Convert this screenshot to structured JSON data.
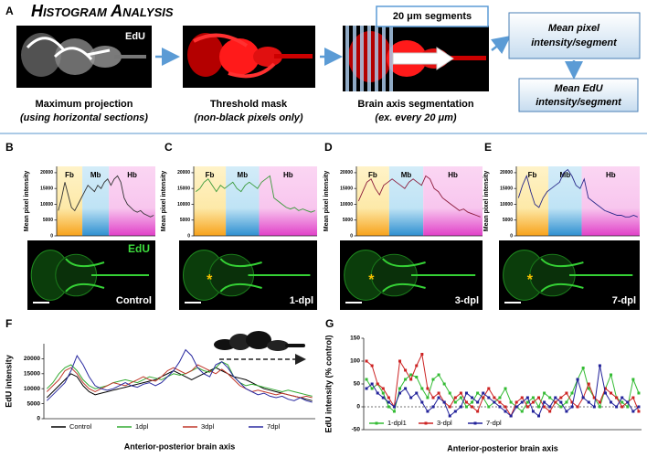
{
  "figure": {
    "panel_labels": [
      "A",
      "B",
      "C",
      "D",
      "E",
      "F",
      "G"
    ],
    "panel_a": {
      "title": "Histogram Analysis",
      "image_label": "EdU",
      "captions": [
        {
          "main": "Maximum projection",
          "sub": "(using horizontal sections)"
        },
        {
          "main": "Threshold mask",
          "sub": "(non-black pixels only)"
        },
        {
          "main": "Brain axis segmentation",
          "sub": "(ex. every 20 μm)"
        }
      ],
      "segments_box": "20 μm segments",
      "box1": [
        "Mean pixel",
        "intensity/segment"
      ],
      "box2": [
        "Mean EdU",
        "intensity/segment"
      ]
    }
  },
  "chart_data": [
    {
      "type": "mini",
      "y_label": "Mean pixel intensity",
      "regions": [
        "Fb",
        "Mb",
        "Hb"
      ],
      "image_label": "EdU",
      "condition": "Control",
      "series": [
        {
          "color": "#333333",
          "values": [
            8000,
            12000,
            17000,
            13000,
            9000,
            8000,
            10000,
            12000,
            14000,
            16000,
            15000,
            14000,
            16000,
            15000,
            17000,
            18000,
            16000,
            18000,
            19000,
            17000,
            12000,
            10000,
            9000,
            8000,
            7500,
            8000,
            7000,
            6500,
            6000,
            6500
          ]
        }
      ],
      "ylim": [
        0,
        22000
      ],
      "yticks": [
        0,
        5000,
        10000,
        15000,
        20000
      ]
    },
    {
      "type": "mini",
      "y_label": "Mean pixel intensity",
      "regions": [
        "Fb",
        "Mb",
        "Hb"
      ],
      "condition": "1-dpl",
      "marker": "*",
      "series": [
        {
          "color": "#3a9a3a",
          "values": [
            14000,
            15000,
            17000,
            18000,
            16000,
            14000,
            16000,
            15000,
            16000,
            17000,
            15000,
            14000,
            16000,
            17000,
            16000,
            15000,
            17000,
            18000,
            19000,
            12000,
            11000,
            10000,
            9000,
            8500,
            9000,
            8000,
            8500,
            8000,
            7500,
            8000
          ]
        }
      ],
      "ylim": [
        0,
        22000
      ],
      "yticks": [
        0,
        5000,
        10000,
        15000,
        20000
      ]
    },
    {
      "type": "mini",
      "y_label": "Mean pixel intensity",
      "regions": [
        "Fb",
        "Mb",
        "Hb"
      ],
      "condition": "3-dpl",
      "marker": "*",
      "series": [
        {
          "color": "#8b1a3a",
          "values": [
            11000,
            14000,
            17000,
            18000,
            15000,
            13000,
            16000,
            17000,
            18000,
            17000,
            16000,
            15000,
            17000,
            18000,
            17000,
            16000,
            19000,
            18000,
            15000,
            14000,
            12000,
            11000,
            10000,
            9000,
            8000,
            8500,
            7500,
            7000,
            6500,
            6000
          ]
        }
      ],
      "ylim": [
        0,
        22000
      ],
      "yticks": [
        0,
        5000,
        10000,
        15000,
        20000
      ]
    },
    {
      "type": "mini",
      "y_label": "Mean pixel intensity",
      "regions": [
        "Fb",
        "Mb",
        "Hb"
      ],
      "condition": "7-dpl",
      "marker": "*",
      "series": [
        {
          "color": "#2a2a8a",
          "values": [
            12000,
            16000,
            19000,
            14000,
            10000,
            9000,
            12000,
            14000,
            15000,
            16000,
            17000,
            20000,
            21000,
            19000,
            16000,
            15000,
            18000,
            12000,
            11000,
            10000,
            9000,
            8000,
            7500,
            7000,
            6500,
            6500,
            6000,
            6000,
            6500,
            6000
          ]
        }
      ],
      "ylim": [
        0,
        22000
      ],
      "yticks": [
        0,
        5000,
        10000,
        15000,
        20000
      ]
    },
    {
      "type": "line",
      "y_label": "EdU intensity",
      "x_label": "Anterior-posterior brain axis",
      "legend": "bottom",
      "ylim": [
        0,
        25000
      ],
      "yticks": [
        0,
        5000,
        10000,
        15000,
        20000
      ],
      "series": [
        {
          "name": "Control",
          "color": "#000000",
          "values": [
            7000,
            9000,
            11000,
            13000,
            15000,
            14000,
            11000,
            9000,
            8000,
            8500,
            9000,
            9500,
            10000,
            10500,
            11000,
            11500,
            12000,
            12500,
            13000,
            14000,
            15000,
            16000,
            15000,
            14000,
            13000,
            14000,
            15000,
            16000,
            17000,
            16000,
            15000,
            14000,
            13500,
            13000,
            12000,
            11000,
            10000,
            9500,
            9000,
            8500,
            8000,
            7500,
            7000,
            6500,
            6000
          ]
        },
        {
          "name": "1dpl",
          "color": "#33aa33",
          "values": [
            10000,
            12000,
            15000,
            17000,
            18000,
            16000,
            13000,
            11000,
            10000,
            10500,
            11000,
            12000,
            12500,
            13000,
            12500,
            12000,
            13000,
            14000,
            13500,
            13000,
            14000,
            15000,
            14500,
            15000,
            16000,
            17000,
            16000,
            15500,
            17000,
            19000,
            18000,
            14000,
            12000,
            11000,
            11500,
            11000,
            10500,
            10000,
            9500,
            9000,
            9500,
            9000,
            8500,
            8000,
            7500
          ]
        },
        {
          "name": "3dpl",
          "color": "#c0392b",
          "values": [
            9000,
            11000,
            13000,
            16000,
            17000,
            15000,
            12000,
            10000,
            9000,
            10000,
            11000,
            12000,
            11500,
            11000,
            12000,
            13000,
            14000,
            13000,
            12500,
            14000,
            16000,
            17000,
            16000,
            15000,
            16000,
            18000,
            17000,
            16000,
            15000,
            16500,
            15000,
            13000,
            11000,
            10000,
            9000,
            9500,
            9000,
            8500,
            8000,
            8500,
            8000,
            7500,
            7000,
            7500,
            7000
          ]
        },
        {
          "name": "7dpl",
          "color": "#2a2aa0",
          "values": [
            6000,
            8000,
            10000,
            12000,
            16000,
            21000,
            18000,
            14000,
            11000,
            10000,
            9500,
            10000,
            11000,
            12000,
            11000,
            10500,
            11500,
            12000,
            11000,
            12000,
            14000,
            16000,
            19000,
            23000,
            21000,
            17000,
            15000,
            14000,
            18000,
            19000,
            17000,
            14000,
            12000,
            10000,
            9000,
            8000,
            8500,
            7500,
            7000,
            7500,
            6500,
            6000,
            7000,
            6000,
            5500
          ]
        }
      ]
    },
    {
      "type": "line",
      "markers": true,
      "zero_line": true,
      "y_label": "EdU intensity (% control)",
      "x_label": "Anterior-posterior brain axis",
      "legend": "bottom-left",
      "ylim": [
        -50,
        150
      ],
      "yticks": [
        -50,
        0,
        50,
        100,
        150
      ],
      "series": [
        {
          "name": "1-dpl1",
          "color": "#33bb33",
          "values": [
            60,
            40,
            50,
            30,
            0,
            -10,
            40,
            60,
            70,
            65,
            40,
            20,
            60,
            70,
            50,
            30,
            10,
            20,
            0,
            10,
            30,
            20,
            0,
            10,
            20,
            40,
            10,
            0,
            -10,
            10,
            20,
            0,
            30,
            20,
            10,
            0,
            10,
            30,
            60,
            85,
            40,
            20,
            0,
            40,
            70,
            20,
            10,
            0,
            60,
            30
          ]
        },
        {
          "name": "3-dpl",
          "color": "#cc2222",
          "values": [
            100,
            90,
            50,
            40,
            20,
            0,
            100,
            80,
            60,
            90,
            115,
            40,
            20,
            30,
            10,
            0,
            20,
            30,
            10,
            0,
            -10,
            20,
            40,
            20,
            10,
            0,
            -20,
            10,
            20,
            0,
            10,
            20,
            0,
            -10,
            10,
            20,
            30,
            10,
            0,
            20,
            50,
            20,
            10,
            40,
            30,
            20,
            0,
            10,
            20,
            -10
          ]
        },
        {
          "name": "7-dpl",
          "color": "#22229a",
          "values": [
            40,
            50,
            30,
            20,
            10,
            0,
            30,
            40,
            20,
            30,
            10,
            -10,
            0,
            20,
            10,
            -20,
            -10,
            0,
            30,
            20,
            10,
            30,
            20,
            10,
            0,
            -10,
            -20,
            0,
            10,
            20,
            -10,
            -20,
            10,
            0,
            20,
            10,
            -10,
            0,
            60,
            20,
            10,
            0,
            90,
            30,
            10,
            0,
            20,
            10,
            -10,
            0
          ]
        }
      ]
    }
  ]
}
